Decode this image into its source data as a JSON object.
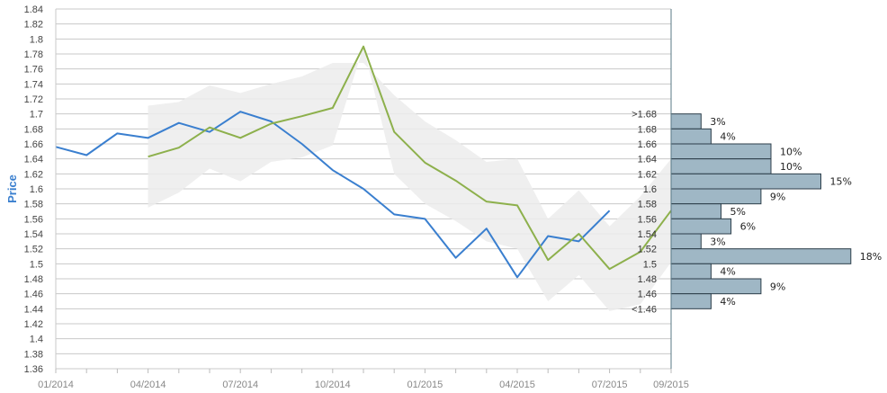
{
  "chart_data": {
    "type": "line",
    "ylabel": "Price",
    "ylim": [
      1.36,
      1.84
    ],
    "yticks": [
      "1.36",
      "1.38",
      "1.4",
      "1.42",
      "1.44",
      "1.46",
      "1.48",
      "1.5",
      "1.52",
      "1.54",
      "1.56",
      "1.58",
      "1.6",
      "1.62",
      "1.64",
      "1.66",
      "1.68",
      "1.7",
      "1.72",
      "1.74",
      "1.76",
      "1.78",
      "1.8",
      "1.82",
      "1.84"
    ],
    "x_tick_labels": [
      "01/2014",
      "04/2014",
      "07/2014",
      "10/2014",
      "01/2015",
      "04/2015",
      "07/2015",
      "09/2015"
    ],
    "x_range": [
      "2014-01",
      "2015-09"
    ],
    "grid": true,
    "colors": {
      "series1": "#3a7fcf",
      "series2": "#8db04c",
      "band": "#ececec",
      "bars": "#9fb7c5",
      "bar_border": "#2c3e4a",
      "ylabel": "#3a7fcf"
    },
    "series": [
      {
        "color": "#3a7fcf",
        "points": [
          [
            "2014-01",
            1.656
          ],
          [
            "2014-02",
            1.645
          ],
          [
            "2014-03",
            1.674
          ],
          [
            "2014-04",
            1.668
          ],
          [
            "2014-05",
            1.688
          ],
          [
            "2014-06",
            1.676
          ],
          [
            "2014-07",
            1.703
          ],
          [
            "2014-08",
            1.69
          ],
          [
            "2014-09",
            1.66
          ],
          [
            "2014-10",
            1.625
          ],
          [
            "2014-11",
            1.6
          ],
          [
            "2014-12",
            1.566
          ],
          [
            "2015-01",
            1.56
          ],
          [
            "2015-02",
            1.508
          ],
          [
            "2015-03",
            1.547
          ],
          [
            "2015-04",
            1.482
          ],
          [
            "2015-05",
            1.537
          ],
          [
            "2015-06",
            1.53
          ],
          [
            "2015-07",
            1.571
          ]
        ]
      },
      {
        "color": "#8db04c",
        "points": [
          [
            "2014-04",
            1.643
          ],
          [
            "2014-05",
            1.655
          ],
          [
            "2014-06",
            1.682
          ],
          [
            "2014-07",
            1.668
          ],
          [
            "2014-08",
            1.687
          ],
          [
            "2014-09",
            1.697
          ],
          [
            "2014-10",
            1.708
          ],
          [
            "2014-11",
            1.79
          ],
          [
            "2014-12",
            1.676
          ],
          [
            "2015-01",
            1.635
          ],
          [
            "2015-02",
            1.611
          ],
          [
            "2015-03",
            1.583
          ],
          [
            "2015-04",
            1.578
          ],
          [
            "2015-05",
            1.505
          ],
          [
            "2015-06",
            1.54
          ],
          [
            "2015-07",
            1.493
          ],
          [
            "2015-08",
            1.516
          ],
          [
            "2015-09",
            1.571
          ]
        ]
      }
    ],
    "band": {
      "upper": [
        [
          "2014-04",
          1.711
        ],
        [
          "2014-05",
          1.716
        ],
        [
          "2014-06",
          1.738
        ],
        [
          "2014-07",
          1.728
        ],
        [
          "2014-08",
          1.74
        ],
        [
          "2014-09",
          1.75
        ],
        [
          "2014-10",
          1.768
        ],
        [
          "2014-11",
          1.768
        ],
        [
          "2014-12",
          1.725
        ],
        [
          "2015-01",
          1.69
        ],
        [
          "2015-02",
          1.665
        ],
        [
          "2015-03",
          1.636
        ],
        [
          "2015-04",
          1.64
        ],
        [
          "2015-05",
          1.56
        ],
        [
          "2015-06",
          1.598
        ],
        [
          "2015-07",
          1.55
        ],
        [
          "2015-08",
          1.59
        ],
        [
          "2015-09",
          1.64
        ]
      ],
      "lower": [
        [
          "2014-04",
          1.575
        ],
        [
          "2014-05",
          1.595
        ],
        [
          "2014-06",
          1.627
        ],
        [
          "2014-07",
          1.61
        ],
        [
          "2014-08",
          1.636
        ],
        [
          "2014-09",
          1.642
        ],
        [
          "2014-10",
          1.658
        ],
        [
          "2014-11",
          1.79
        ],
        [
          "2014-12",
          1.62
        ],
        [
          "2015-01",
          1.58
        ],
        [
          "2015-02",
          1.557
        ],
        [
          "2015-03",
          1.53
        ],
        [
          "2015-04",
          1.52
        ],
        [
          "2015-05",
          1.45
        ],
        [
          "2015-06",
          1.485
        ],
        [
          "2015-07",
          1.437
        ],
        [
          "2015-08",
          1.446
        ],
        [
          "2015-09",
          1.502
        ]
      ]
    },
    "histogram": {
      "bins": [
        {
          "label": ">1.68",
          "low": 1.68,
          "high": 1.7,
          "pct": 3,
          "text": "3%"
        },
        {
          "label": "1.68",
          "low": 1.66,
          "high": 1.68,
          "pct": 4,
          "text": "4%"
        },
        {
          "label": "1.66",
          "low": 1.64,
          "high": 1.66,
          "pct": 10,
          "text": "10%"
        },
        {
          "label": "1.64",
          "low": 1.62,
          "high": 1.64,
          "pct": 10,
          "text": "10%"
        },
        {
          "label": "1.62",
          "low": 1.6,
          "high": 1.62,
          "pct": 15,
          "text": "15%"
        },
        {
          "label": "1.6",
          "low": 1.58,
          "high": 1.6,
          "pct": 9,
          "text": "9%"
        },
        {
          "label": "1.58",
          "low": 1.56,
          "high": 1.58,
          "pct": 5,
          "text": "5%"
        },
        {
          "label": "1.56",
          "low": 1.54,
          "high": 1.56,
          "pct": 6,
          "text": "6%"
        },
        {
          "label": "1.54",
          "low": 1.52,
          "high": 1.54,
          "pct": 3,
          "text": "3%"
        },
        {
          "label": "1.52",
          "low": 1.5,
          "high": 1.52,
          "pct": 18,
          "text": "18%"
        },
        {
          "label": "1.5",
          "low": 1.48,
          "high": 1.5,
          "pct": 4,
          "text": "4%"
        },
        {
          "label": "1.48",
          "low": 1.46,
          "high": 1.48,
          "pct": 9,
          "text": "9%"
        },
        {
          "label": "1.46",
          "low": 1.44,
          "high": 1.46,
          "pct": 4,
          "text": "4%"
        },
        {
          "label": "<1.46",
          "low": 1.44,
          "high": 1.44,
          "pct": 0,
          "text": ""
        }
      ]
    }
  }
}
